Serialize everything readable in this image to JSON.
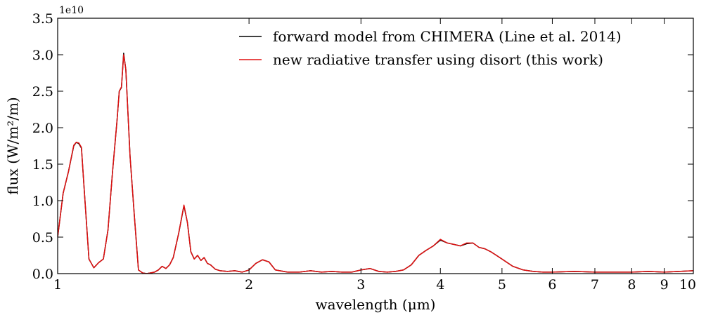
{
  "chart_data": {
    "type": "line",
    "xscale": "log",
    "xlim": [
      1,
      10
    ],
    "ylim": [
      0,
      3.5
    ],
    "y_exponent_label": "1e10",
    "xlabel": "wavelength (μm)",
    "ylabel": "flux (W/m²/m)",
    "xticks": [
      1,
      2,
      3,
      4,
      5,
      6,
      7,
      8,
      9,
      10
    ],
    "xtick_labels": [
      "1",
      "2",
      "3",
      "4",
      "5",
      "6",
      "7",
      "8",
      "9",
      "10"
    ],
    "yticks": [
      0.0,
      0.5,
      1.0,
      1.5,
      2.0,
      2.5,
      3.0,
      3.5
    ],
    "ytick_labels": [
      "0.0",
      "0.5",
      "1.0",
      "1.5",
      "2.0",
      "2.5",
      "3.0",
      "3.5"
    ],
    "legend_position": "top-right",
    "series": [
      {
        "name": "forward model from CHIMERA (Line et al. 2014)",
        "color": "#000000",
        "x": [
          1.0,
          1.02,
          1.04,
          1.06,
          1.07,
          1.08,
          1.09,
          1.1,
          1.12,
          1.14,
          1.16,
          1.18,
          1.2,
          1.22,
          1.24,
          1.25,
          1.26,
          1.27,
          1.28,
          1.3,
          1.32,
          1.34,
          1.36,
          1.38,
          1.4,
          1.42,
          1.44,
          1.46,
          1.48,
          1.5,
          1.52,
          1.55,
          1.58,
          1.6,
          1.62,
          1.64,
          1.66,
          1.68,
          1.7,
          1.72,
          1.74,
          1.77,
          1.8,
          1.85,
          1.9,
          1.95,
          2.0,
          2.05,
          2.1,
          2.15,
          2.2,
          2.3,
          2.4,
          2.5,
          2.6,
          2.7,
          2.8,
          2.9,
          3.0,
          3.1,
          3.2,
          3.3,
          3.4,
          3.5,
          3.6,
          3.7,
          3.8,
          3.9,
          4.0,
          4.1,
          4.2,
          4.3,
          4.4,
          4.5,
          4.6,
          4.7,
          4.8,
          4.9,
          5.0,
          5.2,
          5.4,
          5.6,
          5.8,
          6.0,
          6.5,
          7.0,
          7.5,
          8.0,
          8.5,
          9.0,
          9.5,
          10.0
        ],
        "values": [
          0.5,
          1.1,
          1.4,
          1.75,
          1.8,
          1.78,
          1.72,
          1.2,
          0.2,
          0.08,
          0.15,
          0.2,
          0.6,
          1.4,
          2.1,
          2.5,
          2.55,
          3.02,
          2.8,
          1.6,
          0.8,
          0.05,
          0.01,
          0.0,
          0.01,
          0.02,
          0.05,
          0.1,
          0.07,
          0.12,
          0.22,
          0.55,
          0.93,
          0.7,
          0.3,
          0.2,
          0.25,
          0.18,
          0.22,
          0.14,
          0.12,
          0.06,
          0.04,
          0.03,
          0.04,
          0.02,
          0.05,
          0.14,
          0.19,
          0.16,
          0.05,
          0.02,
          0.02,
          0.04,
          0.02,
          0.03,
          0.02,
          0.02,
          0.05,
          0.07,
          0.03,
          0.02,
          0.03,
          0.05,
          0.12,
          0.25,
          0.32,
          0.38,
          0.46,
          0.42,
          0.4,
          0.38,
          0.41,
          0.42,
          0.36,
          0.34,
          0.3,
          0.25,
          0.2,
          0.1,
          0.05,
          0.03,
          0.02,
          0.02,
          0.03,
          0.02,
          0.02,
          0.02,
          0.03,
          0.02,
          0.03,
          0.04
        ]
      },
      {
        "name": "new radiative transfer using disort (this work)",
        "color": "#e01010",
        "x": [
          1.0,
          1.02,
          1.04,
          1.06,
          1.07,
          1.08,
          1.09,
          1.1,
          1.12,
          1.14,
          1.16,
          1.18,
          1.2,
          1.22,
          1.24,
          1.25,
          1.26,
          1.27,
          1.28,
          1.3,
          1.32,
          1.34,
          1.36,
          1.38,
          1.4,
          1.42,
          1.44,
          1.46,
          1.48,
          1.5,
          1.52,
          1.55,
          1.58,
          1.6,
          1.62,
          1.64,
          1.66,
          1.68,
          1.7,
          1.72,
          1.74,
          1.77,
          1.8,
          1.85,
          1.9,
          1.95,
          2.0,
          2.05,
          2.1,
          2.15,
          2.2,
          2.3,
          2.4,
          2.5,
          2.6,
          2.7,
          2.8,
          2.9,
          3.0,
          3.1,
          3.2,
          3.3,
          3.4,
          3.5,
          3.6,
          3.7,
          3.8,
          3.9,
          4.0,
          4.1,
          4.2,
          4.3,
          4.4,
          4.5,
          4.6,
          4.7,
          4.8,
          4.9,
          5.0,
          5.2,
          5.4,
          5.6,
          5.8,
          6.0,
          6.5,
          7.0,
          7.5,
          8.0,
          8.5,
          9.0,
          9.5,
          10.0
        ],
        "values": [
          0.5,
          1.1,
          1.4,
          1.76,
          1.8,
          1.79,
          1.73,
          1.2,
          0.2,
          0.08,
          0.15,
          0.2,
          0.6,
          1.4,
          2.1,
          2.5,
          2.56,
          3.0,
          2.8,
          1.6,
          0.8,
          0.05,
          0.01,
          0.0,
          0.01,
          0.02,
          0.05,
          0.1,
          0.07,
          0.12,
          0.22,
          0.55,
          0.94,
          0.7,
          0.3,
          0.2,
          0.25,
          0.18,
          0.22,
          0.14,
          0.12,
          0.06,
          0.04,
          0.03,
          0.04,
          0.02,
          0.05,
          0.14,
          0.19,
          0.16,
          0.05,
          0.02,
          0.02,
          0.04,
          0.02,
          0.03,
          0.02,
          0.02,
          0.05,
          0.07,
          0.03,
          0.02,
          0.03,
          0.05,
          0.12,
          0.25,
          0.32,
          0.38,
          0.47,
          0.42,
          0.4,
          0.38,
          0.42,
          0.42,
          0.36,
          0.34,
          0.3,
          0.25,
          0.2,
          0.1,
          0.05,
          0.03,
          0.02,
          0.02,
          0.03,
          0.02,
          0.02,
          0.02,
          0.03,
          0.02,
          0.03,
          0.04
        ]
      }
    ]
  }
}
